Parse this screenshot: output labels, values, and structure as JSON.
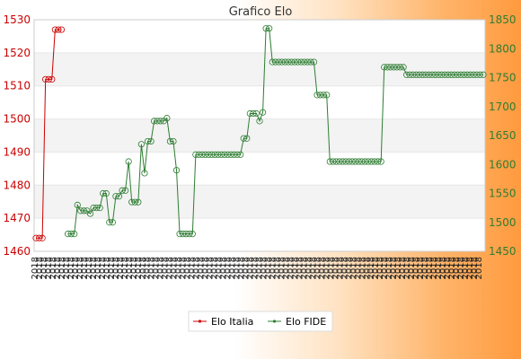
{
  "chart_data": {
    "type": "line",
    "title": "Grafico Elo",
    "left_axis": {
      "ylim": [
        1460,
        1530
      ],
      "ticks": [
        1460,
        1470,
        1480,
        1490,
        1500,
        1510,
        1520,
        1530
      ],
      "color": "#cc0000"
    },
    "right_axis": {
      "ylim": [
        1450,
        1850
      ],
      "ticks": [
        1450,
        1500,
        1550,
        1600,
        1650,
        1700,
        1750,
        1800,
        1850
      ],
      "color": "#2e7d32"
    },
    "grid": true,
    "legend_position": "bottom-center",
    "x_count": 100,
    "x_tick_text": "2018",
    "series": [
      {
        "name": "Elo Italia",
        "axis": "left",
        "color": "#cc0000",
        "points": [
          [
            0,
            1464
          ],
          [
            1,
            1464
          ],
          [
            2,
            1464
          ],
          [
            3,
            1512
          ],
          [
            4,
            1512
          ],
          [
            5,
            1512
          ],
          [
            6,
            1527
          ],
          [
            7,
            1527
          ],
          [
            8,
            1527
          ]
        ]
      },
      {
        "name": "Elo FIDE",
        "axis": "right",
        "color": "#2e7d32",
        "points": [
          [
            10,
            1480
          ],
          [
            11,
            1480
          ],
          [
            12,
            1480
          ],
          [
            13,
            1530
          ],
          [
            14,
            1520
          ],
          [
            15,
            1520
          ],
          [
            16,
            1520
          ],
          [
            17,
            1515
          ],
          [
            18,
            1525
          ],
          [
            19,
            1525
          ],
          [
            20,
            1525
          ],
          [
            21,
            1550
          ],
          [
            22,
            1550
          ],
          [
            23,
            1500
          ],
          [
            24,
            1500
          ],
          [
            25,
            1545
          ],
          [
            26,
            1545
          ],
          [
            27,
            1555
          ],
          [
            28,
            1555
          ],
          [
            29,
            1605
          ],
          [
            30,
            1535
          ],
          [
            31,
            1535
          ],
          [
            32,
            1535
          ],
          [
            33,
            1635
          ],
          [
            34,
            1585
          ],
          [
            35,
            1640
          ],
          [
            36,
            1640
          ],
          [
            37,
            1675
          ],
          [
            38,
            1675
          ],
          [
            39,
            1675
          ],
          [
            40,
            1675
          ],
          [
            41,
            1680
          ],
          [
            42,
            1640
          ],
          [
            43,
            1640
          ],
          [
            44,
            1590
          ],
          [
            45,
            1480
          ],
          [
            46,
            1480
          ],
          [
            47,
            1480
          ],
          [
            48,
            1480
          ],
          [
            49,
            1480
          ],
          [
            50,
            1617
          ],
          [
            51,
            1617
          ],
          [
            52,
            1617
          ],
          [
            53,
            1617
          ],
          [
            54,
            1617
          ],
          [
            55,
            1617
          ],
          [
            56,
            1617
          ],
          [
            57,
            1617
          ],
          [
            58,
            1617
          ],
          [
            59,
            1617
          ],
          [
            60,
            1617
          ],
          [
            61,
            1617
          ],
          [
            62,
            1617
          ],
          [
            63,
            1617
          ],
          [
            64,
            1617
          ],
          [
            65,
            1645
          ],
          [
            66,
            1645
          ],
          [
            67,
            1688
          ],
          [
            68,
            1688
          ],
          [
            69,
            1688
          ],
          [
            70,
            1675
          ],
          [
            71,
            1690
          ],
          [
            72,
            1835
          ],
          [
            73,
            1835
          ],
          [
            74,
            1777
          ],
          [
            75,
            1777
          ],
          [
            76,
            1777
          ],
          [
            77,
            1777
          ],
          [
            78,
            1777
          ],
          [
            79,
            1777
          ],
          [
            80,
            1777
          ],
          [
            81,
            1777
          ],
          [
            82,
            1777
          ],
          [
            83,
            1777
          ],
          [
            84,
            1777
          ],
          [
            85,
            1777
          ],
          [
            86,
            1777
          ],
          [
            87,
            1777
          ],
          [
            88,
            1720
          ],
          [
            89,
            1720
          ],
          [
            90,
            1720
          ],
          [
            91,
            1720
          ],
          [
            92,
            1605
          ],
          [
            93,
            1605
          ],
          [
            94,
            1605
          ],
          [
            95,
            1605
          ],
          [
            96,
            1605
          ],
          [
            97,
            1605
          ],
          [
            98,
            1605
          ],
          [
            99,
            1605
          ],
          [
            100,
            1605
          ],
          [
            101,
            1605
          ],
          [
            102,
            1605
          ],
          [
            103,
            1605
          ],
          [
            104,
            1605
          ],
          [
            105,
            1605
          ],
          [
            106,
            1605
          ],
          [
            107,
            1605
          ],
          [
            108,
            1605
          ],
          [
            109,
            1768
          ],
          [
            110,
            1768
          ],
          [
            111,
            1768
          ],
          [
            112,
            1768
          ],
          [
            113,
            1768
          ],
          [
            114,
            1768
          ],
          [
            115,
            1768
          ],
          [
            116,
            1755
          ],
          [
            117,
            1755
          ],
          [
            118,
            1755
          ],
          [
            119,
            1755
          ],
          [
            120,
            1755
          ],
          [
            121,
            1755
          ],
          [
            122,
            1755
          ],
          [
            123,
            1755
          ],
          [
            124,
            1755
          ],
          [
            125,
            1755
          ],
          [
            126,
            1755
          ],
          [
            127,
            1755
          ],
          [
            128,
            1755
          ],
          [
            129,
            1755
          ],
          [
            130,
            1755
          ],
          [
            131,
            1755
          ],
          [
            132,
            1755
          ],
          [
            133,
            1755
          ],
          [
            134,
            1755
          ],
          [
            135,
            1755
          ],
          [
            136,
            1755
          ],
          [
            137,
            1755
          ],
          [
            138,
            1755
          ],
          [
            139,
            1755
          ],
          [
            140,
            1755
          ]
        ]
      }
    ]
  },
  "legend": {
    "items": [
      {
        "label": "Elo Italia",
        "color": "#cc0000"
      },
      {
        "label": "Elo FIDE",
        "color": "#2e7d32"
      }
    ]
  }
}
